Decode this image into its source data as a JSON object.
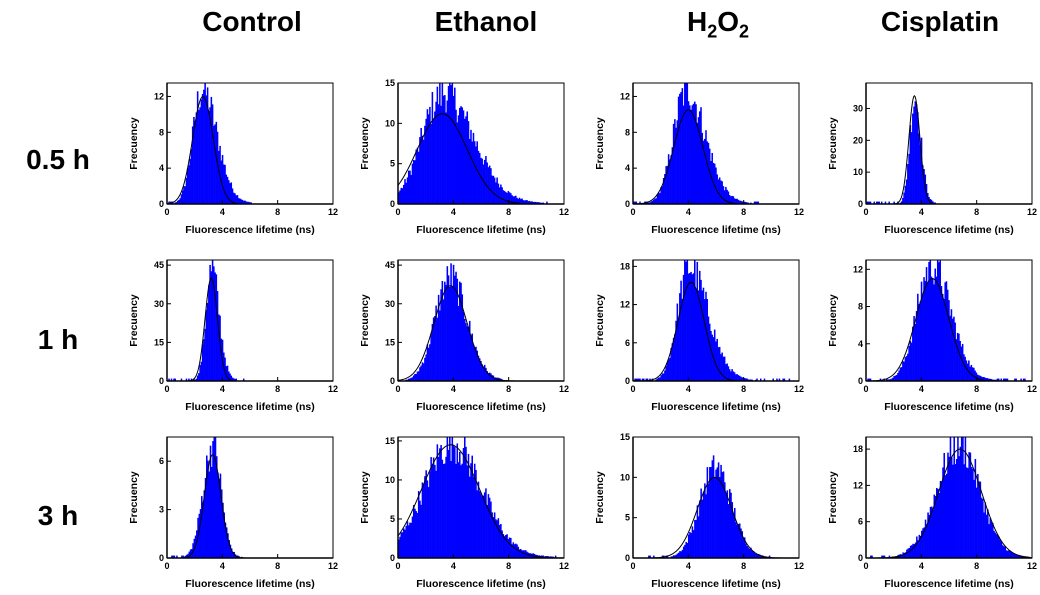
{
  "figure": {
    "columns": [
      {
        "label": "Control",
        "sub": ""
      },
      {
        "label": "Ethanol",
        "sub": ""
      },
      {
        "label": "H",
        "sub": "2",
        "label2": "O",
        "sub2": "2"
      },
      {
        "label": "Cisplatin",
        "sub": ""
      }
    ],
    "rows": [
      "0.5 h",
      "1 h",
      "3 h"
    ]
  },
  "chart_data": [
    {
      "type": "bar",
      "panel": "Control 0.5 h",
      "xlabel": "Fluorescence lifetime (ns)",
      "ylabel": "Frecuency",
      "xlim": [
        0,
        12
      ],
      "ylim": [
        0,
        13.5
      ],
      "xticks": [
        0,
        4,
        8,
        12
      ],
      "yticks": [
        0,
        4,
        8,
        12
      ],
      "fit": {
        "mu": 2.6,
        "sigma": 0.75,
        "peak": 12.0
      },
      "hist": {
        "mode": 2.5,
        "sigmaL": 0.65,
        "sigmaR": 1.1,
        "peak": 12.5,
        "max_x": 6.2
      }
    },
    {
      "type": "bar",
      "panel": "Ethanol 0.5 h",
      "xlabel": "Fluorescence lifetime (ns)",
      "ylabel": "Frecuency",
      "xlim": [
        0,
        12
      ],
      "ylim": [
        0,
        15
      ],
      "xticks": [
        0,
        4,
        8,
        12
      ],
      "yticks": [
        0,
        5,
        10,
        15
      ],
      "fit": {
        "mu": 3.2,
        "sigma": 1.8,
        "peak": 11.2
      },
      "hist": {
        "mode": 3.2,
        "sigmaL": 1.5,
        "sigmaR": 2.2,
        "peak": 13.5,
        "max_x": 11.0
      }
    },
    {
      "type": "bar",
      "panel": "H2O2 0.5 h",
      "xlabel": "Fluorescence lifetime (ns)",
      "ylabel": "Frecuency",
      "xlim": [
        0,
        12
      ],
      "ylim": [
        0,
        13.5
      ],
      "xticks": [
        0,
        4,
        8,
        12
      ],
      "yticks": [
        0,
        4,
        8,
        12
      ],
      "fit": {
        "mu": 4.0,
        "sigma": 1.05,
        "peak": 10.5
      },
      "hist": {
        "mode": 3.8,
        "sigmaL": 0.9,
        "sigmaR": 1.4,
        "peak": 12.5,
        "max_x": 9.0
      }
    },
    {
      "type": "bar",
      "panel": "Cisplatin 0.5 h",
      "xlabel": "Fluorescence lifetime (ns)",
      "ylabel": "Frecuency",
      "xlim": [
        0,
        12
      ],
      "ylim": [
        0,
        38
      ],
      "xticks": [
        0,
        4,
        8,
        12
      ],
      "yticks": [
        0,
        10,
        20,
        30
      ],
      "fit": {
        "mu": 3.5,
        "sigma": 0.4,
        "peak": 34
      },
      "hist": {
        "mode": 3.5,
        "sigmaL": 0.35,
        "sigmaR": 0.45,
        "peak": 33,
        "max_x": 5.0
      }
    },
    {
      "type": "bar",
      "panel": "Control 1 h",
      "xlabel": "Fluorescence lifetime (ns)",
      "ylabel": "Frecuency",
      "xlim": [
        0,
        12
      ],
      "ylim": [
        0,
        47
      ],
      "xticks": [
        0,
        4,
        8,
        12
      ],
      "yticks": [
        0,
        15,
        30,
        45
      ],
      "fit": {
        "mu": 3.2,
        "sigma": 0.45,
        "peak": 40
      },
      "hist": {
        "mode": 3.2,
        "sigmaL": 0.4,
        "sigmaR": 0.55,
        "peak": 43,
        "max_x": 5.5
      }
    },
    {
      "type": "bar",
      "panel": "Ethanol 1 h",
      "xlabel": "Fluorescence lifetime (ns)",
      "ylabel": "Frecuency",
      "xlim": [
        0,
        12
      ],
      "ylim": [
        0,
        47
      ],
      "xticks": [
        0,
        4,
        8,
        12
      ],
      "yticks": [
        0,
        15,
        30,
        45
      ],
      "fit": {
        "mu": 3.8,
        "sigma": 1.2,
        "peak": 37
      },
      "hist": {
        "mode": 3.7,
        "sigmaL": 1.05,
        "sigmaR": 1.25,
        "peak": 39.5,
        "max_x": 7.5
      }
    },
    {
      "type": "bar",
      "panel": "H2O2 1 h",
      "xlabel": "Fluorescence lifetime (ns)",
      "ylabel": "Frecuency",
      "xlim": [
        0,
        12
      ],
      "ylim": [
        0,
        19
      ],
      "xticks": [
        0,
        4,
        8,
        12
      ],
      "yticks": [
        0,
        6,
        12,
        18
      ],
      "fit": {
        "mu": 4.2,
        "sigma": 0.95,
        "peak": 15.5
      },
      "hist": {
        "mode": 4.0,
        "sigmaL": 0.8,
        "sigmaR": 1.4,
        "peak": 17.5,
        "max_x": 11.5
      }
    },
    {
      "type": "bar",
      "panel": "Cisplatin 1 h",
      "xlabel": "Fluorescence lifetime (ns)",
      "ylabel": "Frecuency",
      "xlim": [
        0,
        12
      ],
      "ylim": [
        0,
        13
      ],
      "xticks": [
        0,
        4,
        8,
        12
      ],
      "yticks": [
        0,
        4,
        8,
        12
      ],
      "fit": {
        "mu": 4.8,
        "sigma": 1.2,
        "peak": 11
      },
      "hist": {
        "mode": 4.7,
        "sigmaL": 1.05,
        "sigmaR": 1.4,
        "peak": 12.2,
        "max_x": 11.5
      }
    },
    {
      "type": "bar",
      "panel": "Control 3 h",
      "xlabel": "Fluorescence lifetime (ns)",
      "ylabel": "Frecuency",
      "xlim": [
        0,
        12
      ],
      "ylim": [
        0,
        7.5
      ],
      "xticks": [
        0,
        4,
        8,
        12
      ],
      "yticks": [
        0,
        3,
        6
      ],
      "fit": {
        "mu": 3.3,
        "sigma": 0.6,
        "peak": 6.4
      },
      "hist": {
        "mode": 3.3,
        "sigmaL": 0.7,
        "sigmaR": 0.6,
        "peak": 6.9,
        "max_x": 5.5,
        "min_x": 0.3
      }
    },
    {
      "type": "bar",
      "panel": "Ethanol 3 h",
      "xlabel": "Fluorescence lifetime (ns)",
      "ylabel": "Frecuency",
      "xlim": [
        0,
        12
      ],
      "ylim": [
        0,
        15.5
      ],
      "xticks": [
        0,
        4,
        8,
        12
      ],
      "yticks": [
        0,
        5,
        10,
        15
      ],
      "fit": {
        "mu": 3.8,
        "sigma": 2.1,
        "peak": 14.5
      },
      "hist": {
        "mode": 3.8,
        "sigmaL": 2.0,
        "sigmaR": 2.2,
        "peak": 14.5,
        "max_x": 11.5
      }
    },
    {
      "type": "bar",
      "panel": "H2O2 3 h",
      "xlabel": "Fluorescence lifetime (ns)",
      "ylabel": "Frecuency",
      "xlim": [
        0,
        12
      ],
      "ylim": [
        0,
        15
      ],
      "xticks": [
        0,
        4,
        8,
        12
      ],
      "yticks": [
        0,
        5,
        10,
        15
      ],
      "fit": {
        "mu": 5.9,
        "sigma": 1.25,
        "peak": 10
      },
      "hist": {
        "mode": 5.9,
        "sigmaL": 1.1,
        "sigmaR": 1.2,
        "peak": 11,
        "max_x": 10,
        "min_x": 1.0
      }
    },
    {
      "type": "bar",
      "panel": "Cisplatin 3 h",
      "xlabel": "Fluorescence lifetime (ns)",
      "ylabel": "Frecuency",
      "xlim": [
        0,
        12
      ],
      "ylim": [
        0,
        20
      ],
      "xticks": [
        0,
        4,
        8,
        12
      ],
      "yticks": [
        0,
        6,
        12,
        18
      ],
      "fit": {
        "mu": 6.8,
        "sigma": 1.55,
        "peak": 18
      },
      "hist": {
        "mode": 6.7,
        "sigmaL": 1.6,
        "sigmaR": 1.5,
        "peak": 18.5,
        "max_x": 11.8,
        "min_x": 0.2
      }
    }
  ],
  "style": {
    "bar_color": "#0000ff",
    "fit_color": "#000000"
  }
}
